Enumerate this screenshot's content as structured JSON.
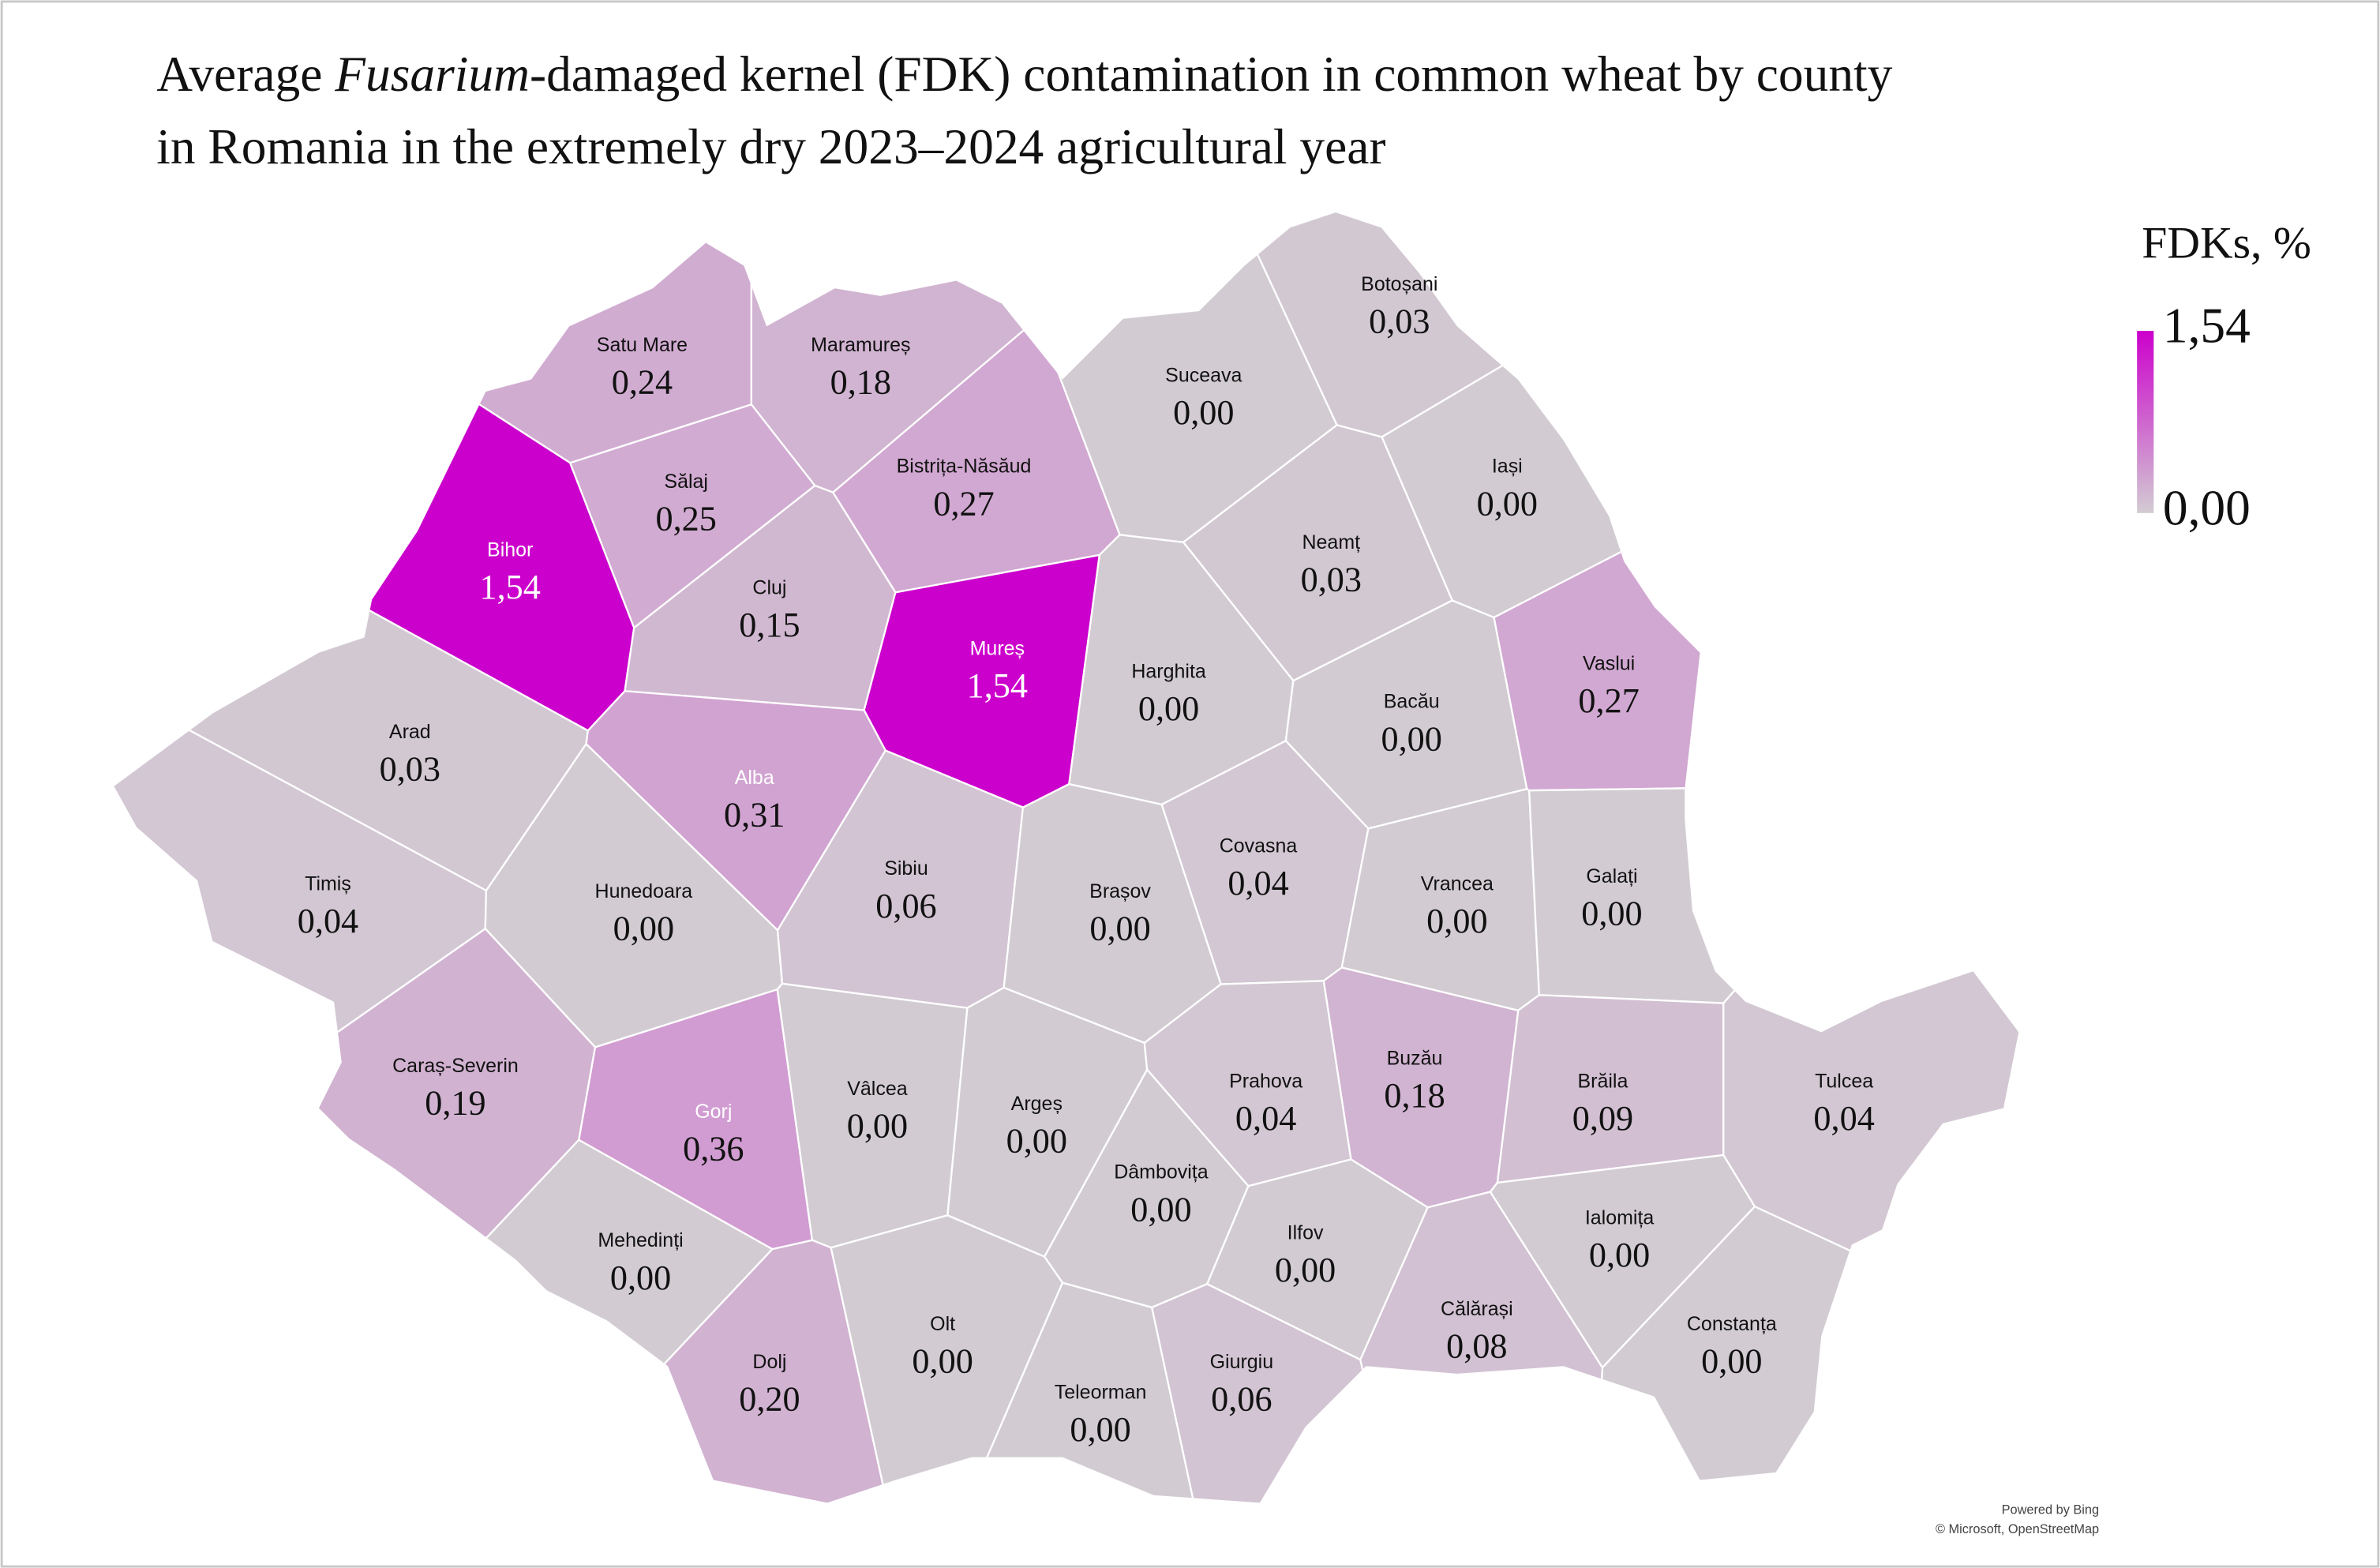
{
  "chart_data": {
    "type": "choropleth",
    "title": [
      "Average ",
      "Fusarium",
      "-damaged kernel (FDK) contamination in common wheat by county",
      "in Romania in the extremely dry 2023–2024 agricultural year"
    ],
    "categories": [
      "Satu Mare",
      "Maramureș",
      "Botoșani",
      "Suceava",
      "Bihor",
      "Sălaj",
      "Bistrița-Năsăud",
      "Iași",
      "Cluj",
      "Neamț",
      "Mureș",
      "Harghita",
      "Bacău",
      "Vaslui",
      "Arad",
      "Alba",
      "Timiș",
      "Hunedoara",
      "Sibiu",
      "Brașov",
      "Covasna",
      "Vrancea",
      "Galați",
      "Caraș-Severin",
      "Gorj",
      "Vâlcea",
      "Argeș",
      "Prahova",
      "Buzău",
      "Brăila",
      "Tulcea",
      "Mehedinți",
      "Dâmbovița",
      "Ilfov",
      "Ialomița",
      "Constanța",
      "Dolj",
      "Olt",
      "Teleorman",
      "Giurgiu",
      "Călărași"
    ],
    "values": [
      0.24,
      0.18,
      0.03,
      0,
      1.54,
      0.25,
      0.27,
      0,
      0.15,
      0.03,
      1.54,
      0,
      0,
      0.27,
      0.03,
      0.31,
      0.04,
      0,
      0.06,
      0,
      0.04,
      0,
      0,
      0.19,
      0.36,
      0,
      0,
      0.04,
      0.18,
      0.09,
      0.04,
      0,
      0,
      0,
      0,
      0,
      0.2,
      0,
      0,
      0.06,
      0.08
    ],
    "value_labels": [
      "0,24",
      "0,18",
      "0,03",
      "0,00",
      "1,54",
      "0,25",
      "0,27",
      "0,00",
      "0,15",
      "0,03",
      "1,54",
      "0,00",
      "0,00",
      "0,27",
      "0,03",
      "0,31",
      "0,04",
      "0,00",
      "0,06",
      "0,00",
      "0,04",
      "0,00",
      "0,00",
      "0,19",
      "0,36",
      "0,00",
      "0,00",
      "0,04",
      "0,18",
      "0,09",
      "0,04",
      "0,00",
      "0,00",
      "0,00",
      "0,00",
      "0,00",
      "0,20",
      "0,00",
      "0,00",
      "0,06",
      "0,08"
    ],
    "legend": {
      "title": "FDKs, %",
      "ticks": [
        {
          "value": 1.54,
          "label": "1,54"
        },
        {
          "value": 0,
          "label": "0,00"
        }
      ]
    },
    "color_min": "#d2ccd2",
    "color_max": "#cc00cc",
    "attribution": [
      "Powered by Bing",
      "© Microsoft, OpenStreetMap"
    ]
  }
}
